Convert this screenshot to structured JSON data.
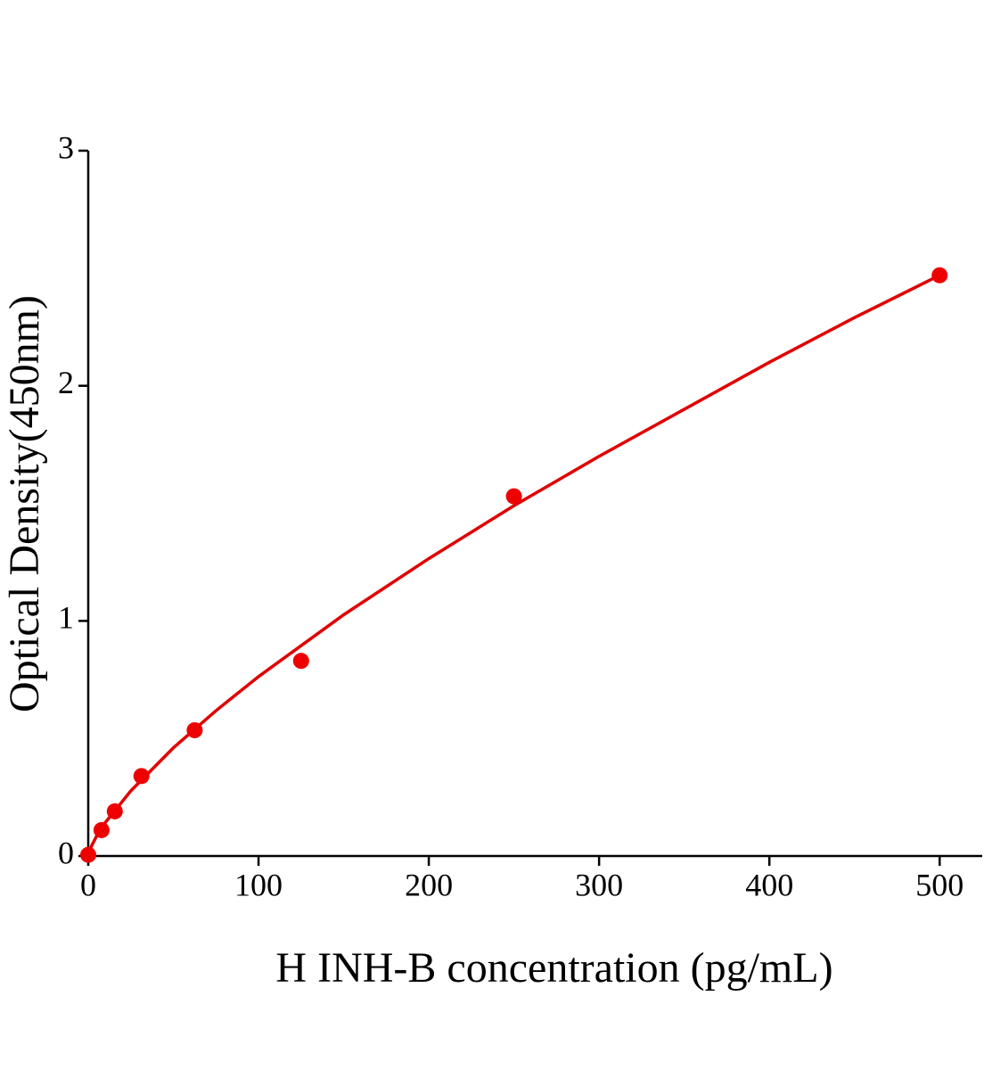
{
  "chart_data": {
    "type": "scatter",
    "x_label": "H INH-B concentration (pg/mL)",
    "y_label": "Optical Density(450nm)",
    "points": {
      "color": "#ee0000",
      "x": [
        0,
        7.8,
        15.6,
        31.25,
        62.5,
        125,
        250,
        500
      ],
      "y": [
        0.005,
        0.11,
        0.19,
        0.34,
        0.535,
        0.83,
        1.53,
        2.47
      ]
    },
    "curve": {
      "color": "#e00000",
      "x": [
        0,
        2,
        5,
        10,
        25,
        50,
        75,
        100,
        150,
        200,
        250,
        300,
        350,
        400,
        450,
        500
      ],
      "y": [
        0,
        0.044,
        0.086,
        0.142,
        0.277,
        0.46,
        0.618,
        0.763,
        1.026,
        1.265,
        1.49,
        1.7,
        1.9,
        2.1,
        2.29,
        2.47
      ]
    },
    "xlim": [
      0,
      525
    ],
    "xticks": [
      0,
      100,
      200,
      300,
      400,
      500
    ],
    "ylim": [
      0,
      3
    ],
    "yticks": [
      0,
      1,
      2,
      3
    ]
  }
}
